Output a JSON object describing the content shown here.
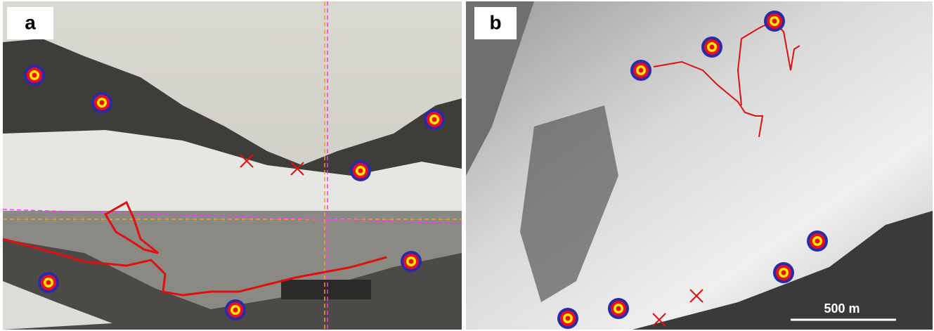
{
  "panels": [
    {
      "label": "a"
    },
    {
      "label": "b",
      "scale_bar": "500 m"
    }
  ]
}
